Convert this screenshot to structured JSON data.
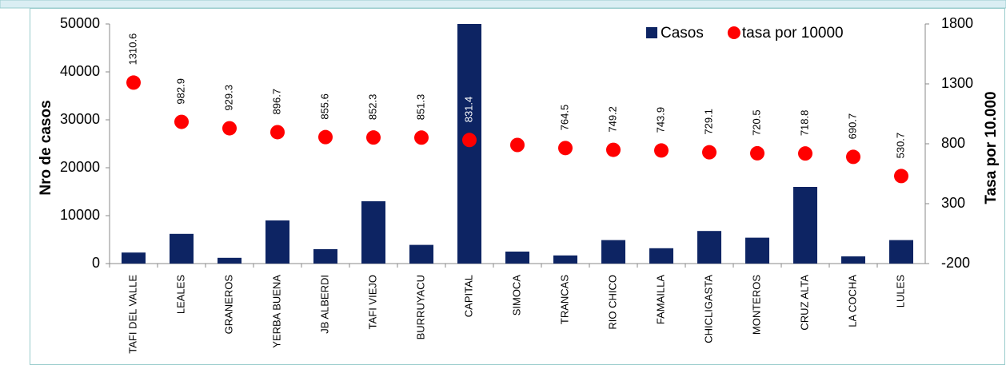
{
  "chart_data": {
    "type": "bar-scatter",
    "categories": [
      "TAFI DEL VALLE",
      "LEALES",
      "GRANEROS",
      "YERBA BUENA",
      "JB ALBERDI",
      "TAFI VIEJO",
      "BURRUYACU",
      "CAPITAL",
      "SIMOCA",
      "TRANCAS",
      "RIO CHICO",
      "FAMAILLA",
      "CHICLIGASTA",
      "MONTEROS",
      "CRUZ ALTA",
      "LA COCHA",
      "LULES"
    ],
    "series": [
      {
        "name": "Casos",
        "color": "#0d2463",
        "type": "bar",
        "values": [
          2300,
          6200,
          1200,
          9000,
          3000,
          13000,
          3900,
          50000,
          2500,
          1700,
          4900,
          3200,
          6800,
          5400,
          16000,
          1500,
          4900
        ]
      },
      {
        "name": "tasa por 10000",
        "color": "#ff0000",
        "type": "scatter",
        "axis": "y2",
        "values": [
          1310.6,
          982.9,
          929.3,
          896.7,
          855.6,
          852.3,
          851.3,
          831.4,
          790,
          764.5,
          749.2,
          743.9,
          729.1,
          720.5,
          718.8,
          690.7,
          530.7
        ],
        "value_labels": [
          "1310.6",
          "982.9",
          "929.3",
          "896.7",
          "855.6",
          "852.3",
          "851.3",
          "831.4",
          null,
          "764.5",
          "749.2",
          "743.9",
          "729.1",
          "720.5",
          "718.8",
          "690.7",
          "530.7"
        ]
      }
    ],
    "ylabel": "Nro de casos",
    "y2label": "Tasa por 10.000",
    "ylim": [
      0,
      50000
    ],
    "yticks": [
      0,
      10000,
      20000,
      30000,
      40000,
      50000
    ],
    "y2lim": [
      -200,
      1800
    ],
    "y2ticks": [
      -200,
      300,
      800,
      1300,
      1800
    ],
    "legend": "top-right"
  }
}
